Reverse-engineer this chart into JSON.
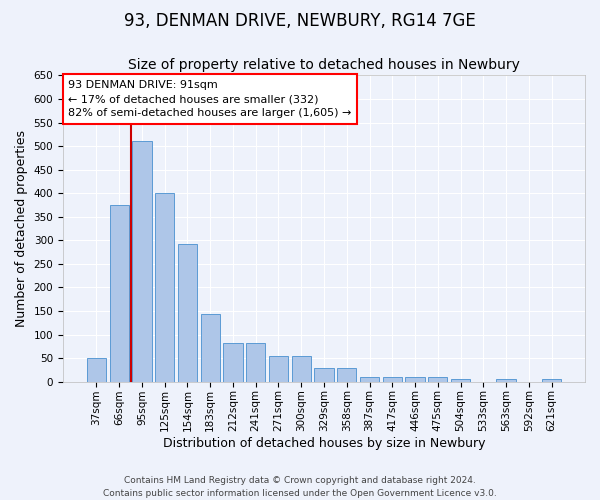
{
  "title": "93, DENMAN DRIVE, NEWBURY, RG14 7GE",
  "subtitle": "Size of property relative to detached houses in Newbury",
  "xlabel": "Distribution of detached houses by size in Newbury",
  "ylabel": "Number of detached properties",
  "categories": [
    "37sqm",
    "66sqm",
    "95sqm",
    "125sqm",
    "154sqm",
    "183sqm",
    "212sqm",
    "241sqm",
    "271sqm",
    "300sqm",
    "329sqm",
    "358sqm",
    "387sqm",
    "417sqm",
    "446sqm",
    "475sqm",
    "504sqm",
    "533sqm",
    "563sqm",
    "592sqm",
    "621sqm"
  ],
  "values": [
    50,
    375,
    510,
    400,
    292,
    143,
    82,
    82,
    54,
    54,
    28,
    28,
    10,
    10,
    10,
    10,
    5,
    0,
    5,
    0,
    5
  ],
  "bar_color": "#aec6e8",
  "bar_edge_color": "#5b9bd5",
  "vline_x_index": 2,
  "vline_color": "#cc0000",
  "annotation_line1": "93 DENMAN DRIVE: 91sqm",
  "annotation_line2": "← 17% of detached houses are smaller (332)",
  "annotation_line3": "82% of semi-detached houses are larger (1,605) →",
  "ylim": [
    0,
    650
  ],
  "yticks": [
    0,
    50,
    100,
    150,
    200,
    250,
    300,
    350,
    400,
    450,
    500,
    550,
    600,
    650
  ],
  "background_color": "#eef2fb",
  "grid_color": "#ffffff",
  "footer_line1": "Contains HM Land Registry data © Crown copyright and database right 2024.",
  "footer_line2": "Contains public sector information licensed under the Open Government Licence v3.0.",
  "title_fontsize": 12,
  "subtitle_fontsize": 10,
  "xlabel_fontsize": 9,
  "ylabel_fontsize": 9,
  "tick_fontsize": 7.5,
  "footer_fontsize": 6.5,
  "annotation_fontsize": 8
}
